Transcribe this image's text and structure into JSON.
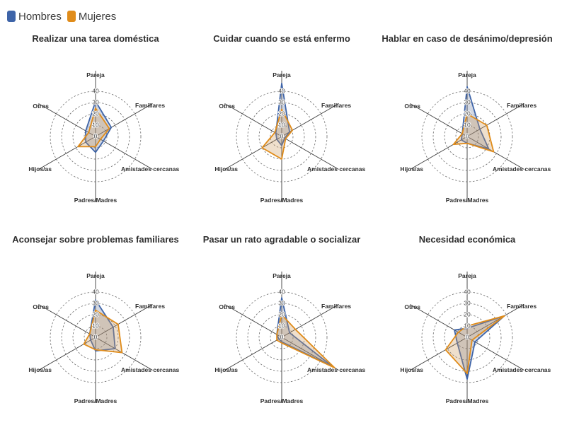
{
  "legend": {
    "items": [
      {
        "label": "Hombres",
        "color": "#3e64a8"
      },
      {
        "label": "Mujeres",
        "color": "#e08c1a"
      }
    ]
  },
  "colors": {
    "Hombres": {
      "stroke": "#3e64a8",
      "fill": "rgba(95,112,150,0.28)"
    },
    "Mujeres": {
      "stroke": "#e08c1a",
      "fill": "rgba(205,155,95,0.32)"
    }
  },
  "chart_data": [
    {
      "type": "radar",
      "title": "Realizar una tarea doméstica",
      "axes": [
        "Pareja",
        "Familiares",
        "Amistades cercanas",
        "Padres/Madres",
        "Hijos/as",
        "Otros"
      ],
      "ticks": [
        0,
        10,
        20,
        30,
        40
      ],
      "rmax": 40,
      "series": [
        {
          "name": "Hombres",
          "values": [
            31,
            16,
            8,
            14,
            10,
            10
          ]
        },
        {
          "name": "Mujeres",
          "values": [
            25,
            14,
            5,
            9,
            18,
            7
          ]
        }
      ]
    },
    {
      "type": "radar",
      "title": "Cuidar cuando se está enfermo",
      "axes": [
        "Pareja",
        "Familiares",
        "Amistades cercanas",
        "Padres/Madres",
        "Hijos/as",
        "Otros"
      ],
      "ticks": [
        0,
        10,
        20,
        30,
        40
      ],
      "rmax": 40,
      "series": [
        {
          "name": "Hombres",
          "values": [
            47,
            8,
            3,
            8,
            5,
            6
          ]
        },
        {
          "name": "Mujeres",
          "values": [
            24,
            11,
            4,
            20,
            20,
            7
          ]
        }
      ]
    },
    {
      "type": "radar",
      "title": "Hablar en caso de desánimo/depresión",
      "axes": [
        "Pareja",
        "Familiares",
        "Amistades cercanas",
        "Padres/Madres",
        "Hijos/as",
        "Otros"
      ],
      "ticks": [
        0,
        10,
        20,
        30,
        40
      ],
      "rmax": 40,
      "series": [
        {
          "name": "Hombres",
          "values": [
            44,
            13,
            22,
            6,
            6,
            5
          ]
        },
        {
          "name": "Mujeres",
          "values": [
            20,
            20,
            27,
            6,
            14,
            5
          ]
        }
      ]
    },
    {
      "type": "radar",
      "title": "Aconsejar sobre problemas familiares",
      "axes": [
        "Pareja",
        "Familiares",
        "Amistades cercanas",
        "Padres/Madres",
        "Hijos/as",
        "Otros"
      ],
      "ticks": [
        0,
        10,
        20,
        30,
        40
      ],
      "rmax": 40,
      "series": [
        {
          "name": "Hombres",
          "values": [
            33,
            18,
            20,
            12,
            5,
            6
          ]
        },
        {
          "name": "Mujeres",
          "values": [
            24,
            23,
            27,
            11,
            12,
            6
          ]
        }
      ]
    },
    {
      "type": "radar",
      "title": "Pasar un rato agradable o socializar",
      "axes": [
        "Pareja",
        "Familiares",
        "Amistades cercanas",
        "Padres/Madres",
        "Hijos/as",
        "Otros"
      ],
      "ticks": [
        0,
        10,
        20,
        30,
        40
      ],
      "rmax": 40,
      "series": [
        {
          "name": "Hombres",
          "values": [
            35,
            8,
            52,
            4,
            3,
            5
          ]
        },
        {
          "name": "Mujeres",
          "values": [
            20,
            14,
            54,
            5,
            5,
            5
          ]
        }
      ]
    },
    {
      "type": "radar",
      "title": "Necesidad económica",
      "axes": [
        "Pareja",
        "Familiares",
        "Amistades cercanas",
        "Padres/Madres",
        "Hijos/as",
        "Otros"
      ],
      "ticks": [
        0,
        10,
        20,
        30,
        40
      ],
      "rmax": 40,
      "series": [
        {
          "name": "Hombres",
          "values": [
            8,
            38,
            8,
            37,
            10,
            13
          ]
        },
        {
          "name": "Mujeres",
          "values": [
            10,
            38,
            5,
            32,
            22,
            9
          ]
        }
      ]
    }
  ]
}
